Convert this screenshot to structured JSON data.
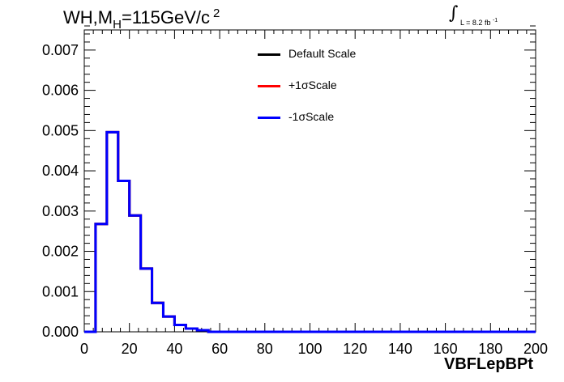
{
  "title": {
    "prefix": "WH,M",
    "subscript": "H",
    "suffix": "=115GeV/c",
    "superscript": "2"
  },
  "luminosity": {
    "integral": "∫",
    "text": "L = 8.2 fb",
    "superscript": "-1"
  },
  "xlabel": "VBFLepBPt",
  "legend": [
    {
      "name": "Default Scale",
      "color": "#000000"
    },
    {
      "name": "+1σScale",
      "color": "#ff0000"
    },
    {
      "name": "-1σScale",
      "color": "#0000ff"
    }
  ],
  "chart_data": {
    "type": "line",
    "xlim": [
      0,
      200
    ],
    "ylim": [
      0,
      0.0075
    ],
    "xticks": [
      "0",
      "20",
      "40",
      "60",
      "80",
      "100",
      "120",
      "140",
      "160",
      "180",
      "200"
    ],
    "yticks": [
      "0.000",
      "0.001",
      "0.002",
      "0.003",
      "0.004",
      "0.005",
      "0.006",
      "0.007"
    ],
    "bin_width": 5,
    "bin_edges_start": 0,
    "series": [
      {
        "name": "Default Scale",
        "color": "#000000",
        "values": [
          0,
          0.00268,
          0.00496,
          0.00375,
          0.00289,
          0.00157,
          0.00072,
          0.00038,
          0.00017,
          8e-05,
          4e-05,
          0,
          0,
          0,
          0,
          0,
          0,
          0,
          0,
          0,
          0,
          0,
          0,
          0,
          0,
          0,
          0,
          0,
          0,
          0,
          0,
          0,
          0,
          0,
          0,
          0,
          0,
          0,
          0,
          0
        ]
      },
      {
        "name": "+1σScale",
        "color": "#ff0000",
        "values": [
          0,
          0.00268,
          0.00496,
          0.00375,
          0.00289,
          0.00157,
          0.00072,
          0.00038,
          0.00017,
          8e-05,
          4e-05,
          0,
          0,
          0,
          0,
          0,
          0,
          0,
          0,
          0,
          0,
          0,
          0,
          0,
          0,
          0,
          0,
          0,
          0,
          0,
          0,
          0,
          0,
          0,
          0,
          0,
          0,
          0,
          0,
          0
        ]
      },
      {
        "name": "-1σScale",
        "color": "#0000ff",
        "values": [
          0,
          0.00268,
          0.00496,
          0.00375,
          0.00289,
          0.00157,
          0.00072,
          0.00038,
          0.00017,
          8e-05,
          4e-05,
          0,
          0,
          0,
          0,
          0,
          0,
          0,
          0,
          0,
          0,
          0,
          0,
          0,
          0,
          0,
          0,
          0,
          0,
          0,
          0,
          0,
          0,
          0,
          0,
          0,
          0,
          0,
          0,
          0
        ]
      }
    ]
  }
}
